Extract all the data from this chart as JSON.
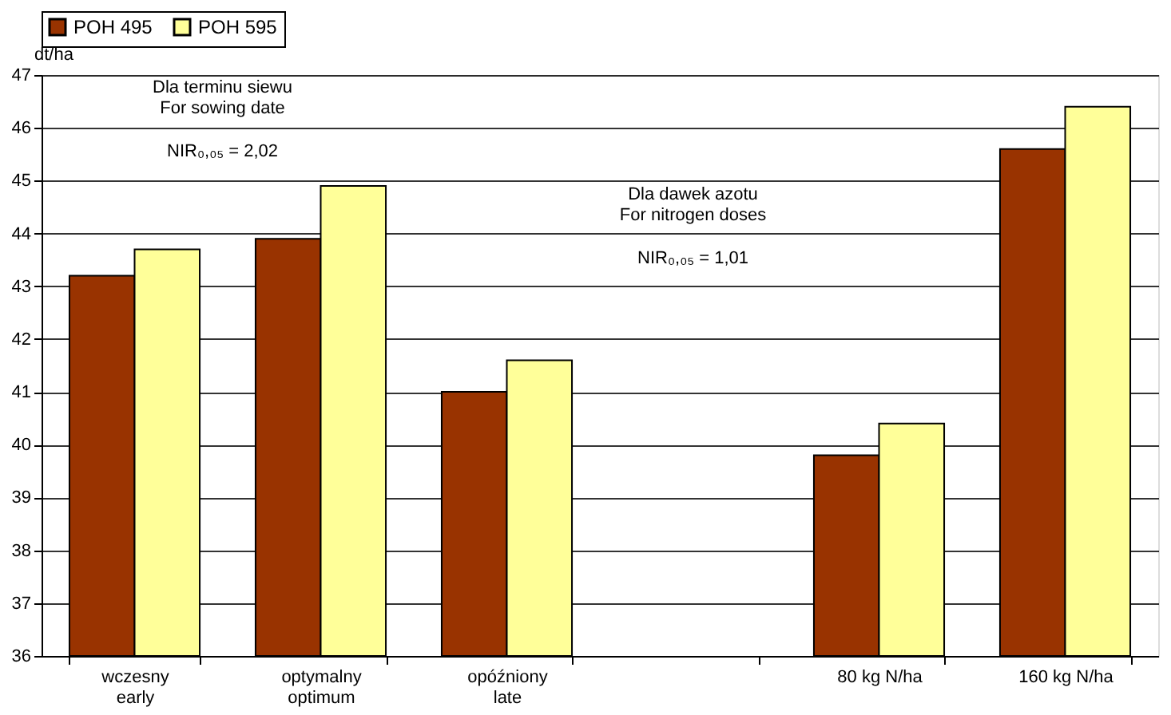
{
  "chart_data": {
    "type": "bar",
    "ylabel": "dt/ha",
    "categories": [
      "wczesny\nearly",
      "optymalny\noptimum",
      "opóźniony\nlate",
      null,
      "80 kg N/ha",
      "160 kg N/ha"
    ],
    "series": [
      {
        "name": "POH 495",
        "color": "#993300",
        "values": [
          43.2,
          43.9,
          41.0,
          null,
          39.8,
          45.6
        ]
      },
      {
        "name": "POH 595",
        "color": "#ffff99",
        "values": [
          43.7,
          44.9,
          41.6,
          null,
          40.4,
          46.4
        ]
      }
    ],
    "ylim": [
      36,
      47
    ],
    "yticks": [
      36,
      37,
      38,
      39,
      40,
      41,
      42,
      43,
      44,
      45,
      46,
      47
    ],
    "grid": "y",
    "legend": "top",
    "annotations": [
      "Dla terminu siewu\nFor sowing date",
      "NIR₀,₀₅ = 2,02",
      "Dla dawek azotu\nFor nitrogen doses",
      "NIR₀,₀₅ = 1,01"
    ]
  }
}
